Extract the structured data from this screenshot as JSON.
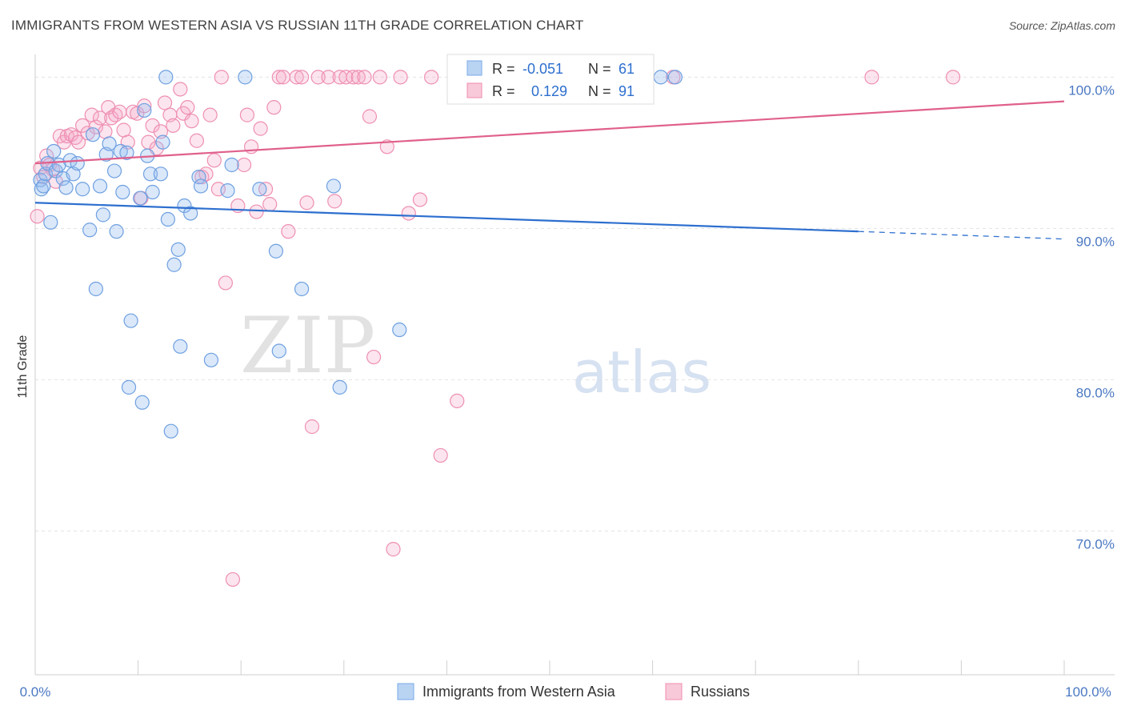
{
  "title": "IMMIGRANTS FROM WESTERN ASIA VS RUSSIAN 11TH GRADE CORRELATION CHART",
  "source": "Source: ZipAtlas.com",
  "watermark": {
    "zip": "ZIP",
    "atlas": "atlas"
  },
  "legend_box": {
    "rows": [
      {
        "r_label": "R =",
        "r_value": "-0.051",
        "n_label": "N =",
        "n_value": "61"
      },
      {
        "r_label": "R =",
        "r_value": "0.129",
        "n_label": "N =",
        "n_value": "91"
      }
    ]
  },
  "chart_data": {
    "type": "scatter",
    "title": "IMMIGRANTS FROM WESTERN ASIA VS RUSSIAN 11TH GRADE CORRELATION CHART",
    "xlabel": "",
    "ylabel": "11th Grade",
    "xlim": [
      0,
      100
    ],
    "ylim": [
      60.5,
      101.5
    ],
    "x_tick_labels": [
      "0.0%",
      "100.0%"
    ],
    "y_ticks": [
      70,
      80,
      90,
      100
    ],
    "y_tick_labels": [
      "70.0%",
      "80.0%",
      "90.0%",
      "100.0%"
    ],
    "grid": "horizontal dashed",
    "legend_position": "bottom-center",
    "series": [
      {
        "name": "Immigrants from Western Asia",
        "color": "#7aaae8",
        "line_color": "#2d6fcf",
        "r": "-0.051",
        "n": "61",
        "trend": {
          "x0": 0,
          "y0": 91.7,
          "x1": 80,
          "y1": 89.8,
          "x_dash_end": 100,
          "y_dash_end": 89.3
        },
        "points": [
          [
            0.5,
            93.2
          ],
          [
            0.6,
            92.6
          ],
          [
            0.8,
            92.8
          ],
          [
            1.0,
            93.6
          ],
          [
            1.2,
            94.3
          ],
          [
            1.5,
            90.4
          ],
          [
            1.8,
            95.1
          ],
          [
            2.0,
            93.8
          ],
          [
            2.3,
            94.2
          ],
          [
            2.7,
            93.3
          ],
          [
            3.0,
            92.7
          ],
          [
            3.4,
            94.5
          ],
          [
            3.7,
            93.6
          ],
          [
            4.1,
            94.3
          ],
          [
            4.6,
            92.6
          ],
          [
            5.3,
            89.9
          ],
          [
            5.6,
            96.2
          ],
          [
            5.9,
            86.0
          ],
          [
            6.3,
            92.8
          ],
          [
            6.6,
            90.9
          ],
          [
            6.9,
            94.9
          ],
          [
            7.2,
            95.6
          ],
          [
            7.7,
            93.8
          ],
          [
            7.9,
            89.8
          ],
          [
            8.3,
            95.1
          ],
          [
            8.5,
            92.4
          ],
          [
            8.9,
            95.0
          ],
          [
            9.1,
            79.5
          ],
          [
            9.3,
            83.9
          ],
          [
            10.2,
            92.0
          ],
          [
            10.4,
            78.5
          ],
          [
            10.6,
            97.8
          ],
          [
            10.9,
            94.8
          ],
          [
            11.2,
            93.6
          ],
          [
            11.4,
            92.4
          ],
          [
            12.2,
            93.6
          ],
          [
            12.4,
            95.7
          ],
          [
            12.7,
            100.0
          ],
          [
            12.9,
            90.6
          ],
          [
            13.2,
            76.6
          ],
          [
            13.5,
            87.6
          ],
          [
            13.9,
            88.6
          ],
          [
            14.1,
            82.2
          ],
          [
            14.5,
            91.5
          ],
          [
            15.1,
            91.0
          ],
          [
            15.9,
            93.4
          ],
          [
            16.1,
            92.8
          ],
          [
            17.1,
            81.3
          ],
          [
            18.7,
            92.5
          ],
          [
            19.1,
            94.2
          ],
          [
            20.4,
            100.0
          ],
          [
            21.8,
            92.6
          ],
          [
            23.4,
            88.5
          ],
          [
            23.7,
            81.9
          ],
          [
            25.9,
            86.0
          ],
          [
            29.0,
            92.8
          ],
          [
            29.6,
            79.5
          ],
          [
            35.4,
            83.3
          ],
          [
            43.8,
            100.0
          ],
          [
            60.8,
            100.0
          ],
          [
            62.2,
            100.0
          ]
        ]
      },
      {
        "name": "Russians",
        "color": "#f08cb0",
        "line_color": "#e0608c",
        "r": "0.129",
        "n": "91",
        "trend": {
          "x0": 0,
          "y0": 94.3,
          "x1": 100,
          "y1": 98.4
        },
        "points": [
          [
            0.2,
            90.8
          ],
          [
            0.5,
            94.0
          ],
          [
            0.8,
            93.4
          ],
          [
            1.1,
            94.8
          ],
          [
            1.4,
            94.2
          ],
          [
            1.7,
            93.9
          ],
          [
            2.0,
            93.1
          ],
          [
            2.4,
            96.1
          ],
          [
            2.8,
            95.7
          ],
          [
            3.1,
            96.1
          ],
          [
            3.5,
            96.2
          ],
          [
            3.9,
            96.0
          ],
          [
            4.2,
            95.7
          ],
          [
            4.6,
            96.8
          ],
          [
            5.1,
            96.3
          ],
          [
            5.5,
            97.5
          ],
          [
            5.9,
            96.7
          ],
          [
            6.3,
            97.3
          ],
          [
            6.8,
            96.4
          ],
          [
            7.1,
            98.0
          ],
          [
            7.4,
            97.3
          ],
          [
            7.8,
            97.5
          ],
          [
            8.2,
            97.7
          ],
          [
            8.6,
            96.5
          ],
          [
            9.0,
            95.7
          ],
          [
            9.5,
            97.7
          ],
          [
            9.9,
            97.6
          ],
          [
            10.3,
            92.0
          ],
          [
            10.6,
            98.1
          ],
          [
            11.0,
            95.7
          ],
          [
            11.4,
            96.8
          ],
          [
            11.8,
            95.3
          ],
          [
            12.2,
            96.4
          ],
          [
            12.6,
            98.3
          ],
          [
            13.1,
            97.5
          ],
          [
            13.4,
            96.8
          ],
          [
            14.1,
            99.2
          ],
          [
            14.4,
            97.6
          ],
          [
            14.8,
            98.0
          ],
          [
            15.2,
            97.1
          ],
          [
            15.7,
            95.8
          ],
          [
            16.2,
            93.4
          ],
          [
            16.6,
            93.6
          ],
          [
            17.0,
            97.5
          ],
          [
            17.4,
            94.5
          ],
          [
            17.8,
            92.6
          ],
          [
            18.1,
            100.0
          ],
          [
            18.5,
            86.4
          ],
          [
            19.2,
            66.8
          ],
          [
            19.7,
            91.5
          ],
          [
            20.3,
            94.2
          ],
          [
            20.6,
            97.5
          ],
          [
            21.0,
            95.4
          ],
          [
            21.5,
            91.1
          ],
          [
            21.9,
            96.6
          ],
          [
            22.4,
            92.6
          ],
          [
            22.8,
            91.6
          ],
          [
            23.2,
            98.0
          ],
          [
            23.7,
            100.0
          ],
          [
            24.1,
            100.0
          ],
          [
            24.6,
            89.8
          ],
          [
            25.4,
            100.0
          ],
          [
            25.9,
            100.0
          ],
          [
            26.4,
            91.7
          ],
          [
            26.9,
            76.9
          ],
          [
            27.5,
            100.0
          ],
          [
            28.5,
            100.0
          ],
          [
            29.1,
            91.8
          ],
          [
            29.6,
            100.0
          ],
          [
            30.2,
            100.0
          ],
          [
            30.9,
            100.0
          ],
          [
            31.4,
            100.0
          ],
          [
            32.0,
            100.0
          ],
          [
            32.5,
            97.4
          ],
          [
            32.9,
            81.5
          ],
          [
            33.5,
            100.0
          ],
          [
            34.2,
            95.4
          ],
          [
            34.8,
            68.8
          ],
          [
            35.5,
            100.0
          ],
          [
            36.3,
            91.0
          ],
          [
            37.4,
            91.9
          ],
          [
            38.5,
            100.0
          ],
          [
            39.4,
            75.0
          ],
          [
            41.0,
            78.6
          ],
          [
            46.4,
            100.0
          ],
          [
            47.8,
            100.0
          ],
          [
            50.2,
            100.0
          ],
          [
            56.3,
            100.0
          ],
          [
            62.0,
            100.0
          ],
          [
            81.3,
            100.0
          ],
          [
            89.2,
            100.0
          ]
        ]
      }
    ]
  }
}
